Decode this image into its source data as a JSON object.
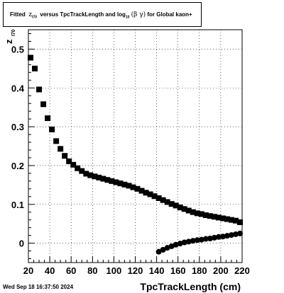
{
  "title": {
    "pre": "Fitted",
    "z_var": "z",
    "z_sub": "I70",
    "mid": "versus TpcTrackLength and log",
    "log_sub": "10",
    "beta_gamma": "(β γ)",
    "post": "for Global kaon+"
  },
  "timestamp": "Wed Sep 18 16:37:50 2024",
  "chart_data": {
    "type": "scatter",
    "xlabel": "TpcTrackLength (cm)",
    "ylabel": "z",
    "ylabel_sub": "I70",
    "xlim": [
      20,
      220
    ],
    "ylim": [
      -0.05,
      0.55
    ],
    "xticks": [
      20,
      40,
      60,
      80,
      100,
      120,
      140,
      160,
      180,
      200,
      220
    ],
    "yticks": [
      0,
      0.1,
      0.2,
      0.3,
      0.4,
      0.5
    ],
    "ytick_labels": [
      "0",
      "0.1",
      "0.2",
      "0.3",
      "0.4",
      "0.5"
    ],
    "grid": true,
    "marker_color": "#000000",
    "series": [
      {
        "marker": "square",
        "x": [
          22,
          26,
          30,
          34,
          38,
          42,
          46,
          50,
          54,
          58,
          62,
          66,
          70,
          74,
          78,
          82,
          86,
          90,
          94,
          98,
          102,
          106,
          110,
          114,
          118,
          122,
          126,
          130,
          134,
          138,
          142,
          146,
          150,
          154,
          158,
          162,
          166,
          170,
          174,
          178,
          182,
          186,
          190,
          194,
          198,
          202,
          206,
          210,
          214,
          218
        ],
        "y": [
          0.478,
          0.45,
          0.396,
          0.358,
          0.322,
          0.293,
          0.263,
          0.243,
          0.225,
          0.211,
          0.202,
          0.193,
          0.186,
          0.179,
          0.175,
          0.172,
          0.169,
          0.166,
          0.163,
          0.16,
          0.157,
          0.154,
          0.151,
          0.148,
          0.144,
          0.14,
          0.135,
          0.13,
          0.126,
          0.121,
          0.116,
          0.111,
          0.106,
          0.101,
          0.097,
          0.092,
          0.088,
          0.084,
          0.08,
          0.077,
          0.075,
          0.072,
          0.07,
          0.068,
          0.066,
          0.064,
          0.062,
          0.06,
          0.058,
          0.054
        ]
      },
      {
        "marker": "circle",
        "x": [
          142,
          146,
          150,
          154,
          158,
          162,
          166,
          170,
          174,
          178,
          182,
          186,
          190,
          194,
          198,
          202,
          206,
          210,
          214,
          218
        ],
        "y": [
          -0.022,
          -0.017,
          -0.012,
          -0.008,
          -0.004,
          -0.001,
          0.002,
          0.004,
          0.006,
          0.008,
          0.009,
          0.011,
          0.012,
          0.014,
          0.016,
          0.017,
          0.019,
          0.021,
          0.023,
          0.025
        ]
      }
    ]
  }
}
